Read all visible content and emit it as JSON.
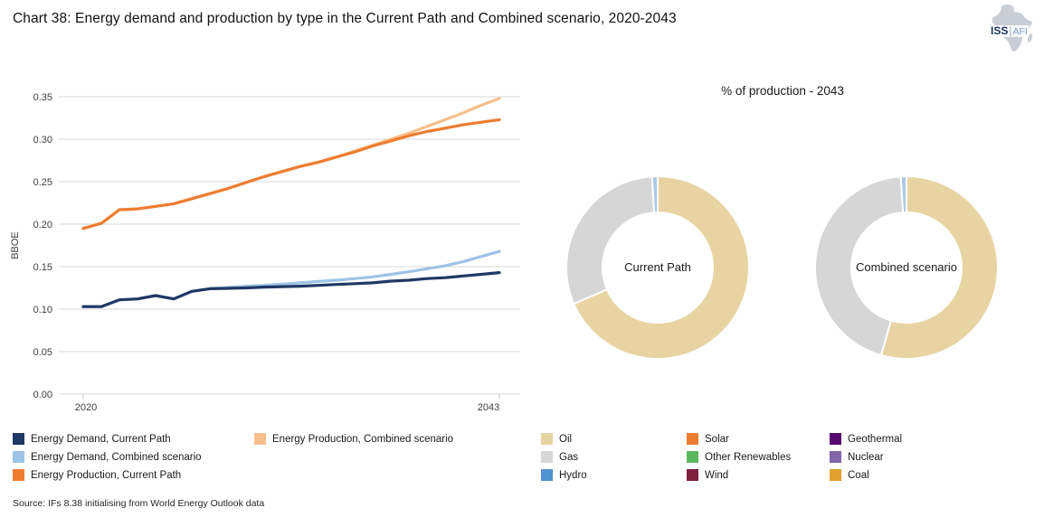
{
  "title": "Chart 38: Energy demand and production by type in the Current Path and Combined scenario, 2020-2043",
  "logo": {
    "org": "ISS",
    "unit": "AFI"
  },
  "source": "Source: IFs 8.38 initialising from World Energy Outlook data",
  "chart_data": [
    {
      "type": "line",
      "ylabel": "BBOE",
      "ylim": [
        0,
        0.35
      ],
      "yticks": [
        0.0,
        0.05,
        0.1,
        0.15,
        0.2,
        0.25,
        0.3,
        0.35
      ],
      "x_start": 2020,
      "x_end": 2043,
      "x_tick_labels": [
        "2020",
        "2043"
      ],
      "grid": true,
      "x": [
        2020,
        2021,
        2022,
        2023,
        2024,
        2025,
        2026,
        2027,
        2028,
        2029,
        2030,
        2031,
        2032,
        2033,
        2034,
        2035,
        2036,
        2037,
        2038,
        2039,
        2040,
        2041,
        2042,
        2043
      ],
      "series": [
        {
          "name": "Energy Demand, Current Path",
          "color": "#1f3864",
          "values": [
            0.103,
            0.103,
            0.111,
            0.112,
            0.116,
            0.112,
            0.121,
            0.124,
            0.1245,
            0.125,
            0.126,
            0.1265,
            0.127,
            0.128,
            0.129,
            0.13,
            0.131,
            0.133,
            0.134,
            0.136,
            0.137,
            0.139,
            0.141,
            0.143
          ]
        },
        {
          "name": "Energy Demand, Combined scenario",
          "color": "#9dc3e6",
          "values": [
            0.103,
            0.103,
            0.111,
            0.112,
            0.116,
            0.112,
            0.121,
            0.124,
            0.1255,
            0.127,
            0.128,
            0.1295,
            0.131,
            0.1325,
            0.134,
            0.136,
            0.138,
            0.141,
            0.144,
            0.1475,
            0.151,
            0.156,
            0.162,
            0.168
          ]
        },
        {
          "name": "Energy Production, Current Path",
          "color": "#ed7d31",
          "values": [
            0.195,
            0.201,
            0.217,
            0.218,
            0.221,
            0.224,
            0.23,
            0.236,
            0.242,
            0.249,
            0.256,
            0.262,
            0.268,
            0.273,
            0.279,
            0.285,
            0.292,
            0.298,
            0.304,
            0.309,
            0.313,
            0.317,
            0.32,
            0.323
          ]
        },
        {
          "name": "Energy Production, Combined scenario",
          "color": "#f8bf8b",
          "values": [
            0.195,
            0.201,
            0.217,
            0.218,
            0.221,
            0.224,
            0.23,
            0.236,
            0.242,
            0.249,
            0.256,
            0.262,
            0.268,
            0.273,
            0.279,
            0.286,
            0.293,
            0.3,
            0.307,
            0.315,
            0.323,
            0.331,
            0.34,
            0.348
          ]
        }
      ],
      "legend_position": "bottom"
    },
    {
      "type": "pie",
      "title": "% of production - 2043",
      "donuts": [
        {
          "label": "Current Path",
          "slices": [
            {
              "name": "Oil",
              "value": 68.5,
              "color": "#e8d4a3"
            },
            {
              "name": "Gas",
              "value": 30.5,
              "color": "#d6d6d6"
            },
            {
              "name": "Hydro",
              "value": 1.0,
              "color": "#aac9e8"
            }
          ]
        },
        {
          "label": "Combined scenario",
          "slices": [
            {
              "name": "Oil",
              "value": 54.5,
              "color": "#e8d4a3"
            },
            {
              "name": "Gas",
              "value": 44.5,
              "color": "#d6d6d6"
            },
            {
              "name": "Hydro",
              "value": 1.0,
              "color": "#aac9e8"
            }
          ]
        }
      ],
      "legend": [
        {
          "name": "Oil",
          "color": "#e8d4a3"
        },
        {
          "name": "Gas",
          "color": "#d6d6d6"
        },
        {
          "name": "Hydro",
          "color": "#4f93d0"
        },
        {
          "name": "Solar",
          "color": "#ed7d31"
        },
        {
          "name": "Other Renewables",
          "color": "#5cb860"
        },
        {
          "name": "Wind",
          "color": "#801f3d"
        },
        {
          "name": "Geothermal",
          "color": "#560a6d"
        },
        {
          "name": "Nuclear",
          "color": "#8166a8"
        },
        {
          "name": "Coal",
          "color": "#e2a02e"
        }
      ],
      "legend_position": "bottom"
    }
  ]
}
